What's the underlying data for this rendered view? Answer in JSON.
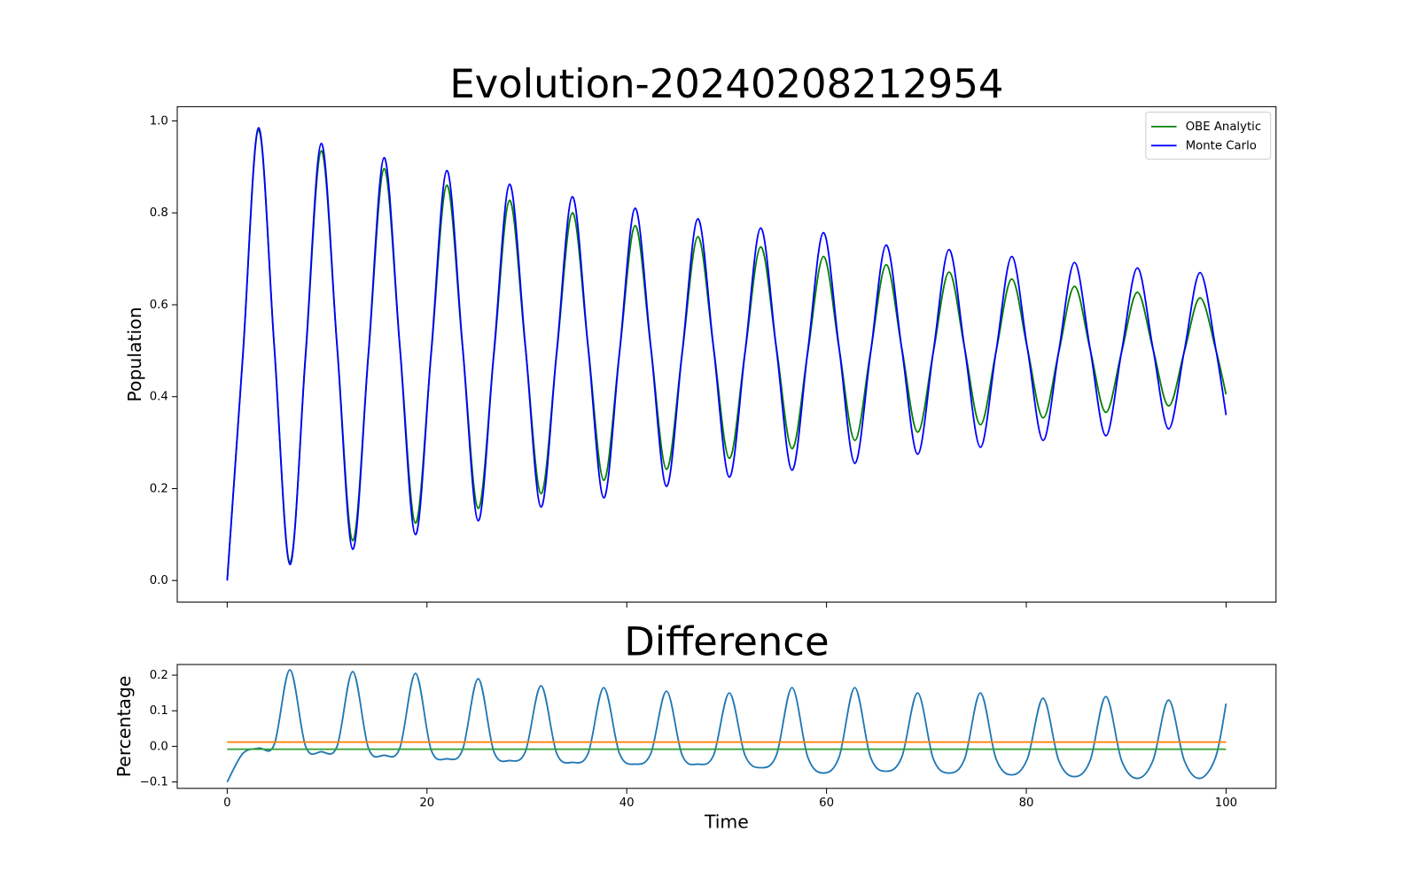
{
  "chart_data": [
    {
      "type": "line",
      "title": "Evolution-20240208212954",
      "ylabel": "Population",
      "xlim": [
        -5,
        105
      ],
      "ylim": [
        -0.047,
        1.031
      ],
      "xticks": [
        0,
        20,
        40,
        60,
        80,
        100
      ],
      "xtick_labels": false,
      "yticks": [
        {
          "value": 0,
          "label": "0.0"
        },
        0.2,
        0.4,
        0.6,
        0.8,
        {
          "value": 1,
          "label": "1.0"
        }
      ],
      "grid": false,
      "legend": "upper right",
      "x": [
        0,
        1.57,
        3.14,
        4.71,
        6.28,
        7.85,
        9.42,
        11,
        12.57,
        14.14,
        15.71,
        17.28,
        18.85,
        20.42,
        21.99,
        23.56,
        25.13,
        26.7,
        28.27,
        29.85,
        31.42,
        32.99,
        34.56,
        36.13,
        37.7,
        39.27,
        40.84,
        42.41,
        43.98,
        45.55,
        47.12,
        48.69,
        50.27,
        51.84,
        53.41,
        54.98,
        56.55,
        58.12,
        59.69,
        61.26,
        62.83,
        64.4,
        65.97,
        67.54,
        69.12,
        70.69,
        72.26,
        73.83,
        75.4,
        76.97,
        78.54,
        80.11,
        81.68,
        83.25,
        84.82,
        86.39,
        87.96,
        89.54,
        91.11,
        92.68,
        94.25,
        95.82,
        97.39,
        98.96,
        100
      ],
      "series": [
        {
          "name": "OBE Analytic",
          "color": "#008000",
          "values": [
            0,
            0.49,
            0.98,
            0.51,
            0.04,
            0.488,
            0.935,
            0.511,
            0.087,
            0.492,
            0.896,
            0.511,
            0.125,
            0.493,
            0.86,
            0.509,
            0.157,
            0.492,
            0.827,
            0.508,
            0.189,
            0.495,
            0.8,
            0.509,
            0.218,
            0.495,
            0.772,
            0.507,
            0.242,
            0.495,
            0.748,
            0.507,
            0.266,
            0.496,
            0.726,
            0.507,
            0.287,
            0.496,
            0.705,
            0.505,
            0.305,
            0.496,
            0.687,
            0.505,
            0.323,
            0.497,
            0.671,
            0.505,
            0.339,
            0.498,
            0.656,
            0.505,
            0.354,
            0.497,
            0.64,
            0.503,
            0.366,
            0.497,
            0.627,
            0.504,
            0.38,
            0.498,
            0.615,
            0.503,
            0.405
          ]
        },
        {
          "name": "Monte Carlo",
          "color": "#0000ff",
          "values": [
            0,
            0.49,
            0.985,
            0.51,
            0.035,
            0.493,
            0.951,
            0.51,
            0.068,
            0.494,
            0.92,
            0.51,
            0.1,
            0.496,
            0.892,
            0.511,
            0.13,
            0.496,
            0.862,
            0.511,
            0.16,
            0.498,
            0.835,
            0.508,
            0.18,
            0.495,
            0.81,
            0.508,
            0.205,
            0.496,
            0.787,
            0.506,
            0.225,
            0.496,
            0.767,
            0.504,
            0.24,
            0.499,
            0.757,
            0.506,
            0.255,
            0.493,
            0.73,
            0.503,
            0.275,
            0.498,
            0.72,
            0.505,
            0.29,
            0.498,
            0.705,
            0.505,
            0.305,
            0.499,
            0.692,
            0.504,
            0.315,
            0.498,
            0.68,
            0.505,
            0.33,
            0.5,
            0.67,
            0.505,
            0.36
          ]
        }
      ]
    },
    {
      "type": "line",
      "title": "Difference",
      "xlabel": "Time",
      "ylabel": "Percentage",
      "xlim": [
        -5,
        105
      ],
      "ylim": [
        -0.118,
        0.23
      ],
      "xticks": [
        0,
        20,
        40,
        60,
        80,
        100
      ],
      "yticks": [
        {
          "value": -0.1,
          "label": "−0.1"
        },
        {
          "value": 0,
          "label": "0.0"
        },
        0.1,
        0.2
      ],
      "grid": false,
      "x": [
        0,
        1.57,
        3.14,
        4.71,
        6.28,
        7.85,
        9.42,
        11,
        12.57,
        14.14,
        15.71,
        17.28,
        18.85,
        20.42,
        21.99,
        23.56,
        25.13,
        26.7,
        28.27,
        29.85,
        31.42,
        32.99,
        34.56,
        36.13,
        37.7,
        39.27,
        40.84,
        42.41,
        43.98,
        45.55,
        47.12,
        48.69,
        50.27,
        51.84,
        53.41,
        54.98,
        56.55,
        58.12,
        59.69,
        61.26,
        62.83,
        64.4,
        65.97,
        67.54,
        69.12,
        70.69,
        72.26,
        73.83,
        75.4,
        76.97,
        78.54,
        80.11,
        81.68,
        83.25,
        84.82,
        86.39,
        87.96,
        89.54,
        91.11,
        92.68,
        94.25,
        95.82,
        97.39,
        98.96,
        100
      ],
      "series": [
        {
          "color": "#1f77b4",
          "values": [
            -0.1,
            -0.02,
            -0.005,
            0.005,
            0.215,
            0,
            -0.015,
            0,
            0.21,
            -0.005,
            -0.025,
            -0.005,
            0.205,
            -0.01,
            -0.035,
            -0.01,
            0.19,
            -0.015,
            -0.04,
            -0.015,
            0.17,
            -0.02,
            -0.045,
            -0.02,
            0.165,
            -0.02,
            -0.05,
            -0.02,
            0.155,
            -0.025,
            -0.05,
            -0.025,
            0.15,
            -0.025,
            -0.06,
            -0.025,
            0.165,
            -0.03,
            -0.075,
            -0.03,
            0.165,
            -0.03,
            -0.07,
            -0.03,
            0.15,
            -0.035,
            -0.075,
            -0.035,
            0.15,
            -0.035,
            -0.08,
            -0.035,
            0.135,
            -0.04,
            -0.085,
            -0.04,
            0.14,
            -0.04,
            -0.09,
            -0.04,
            0.13,
            -0.04,
            -0.09,
            -0.03,
            0.12
          ]
        },
        {
          "color": "#ff7f0e",
          "x": [
            0,
            100
          ],
          "values": [
            0.012,
            0.012
          ]
        },
        {
          "color": "#2ca02c",
          "x": [
            0,
            100
          ],
          "values": [
            -0.008,
            -0.008
          ]
        }
      ]
    }
  ]
}
